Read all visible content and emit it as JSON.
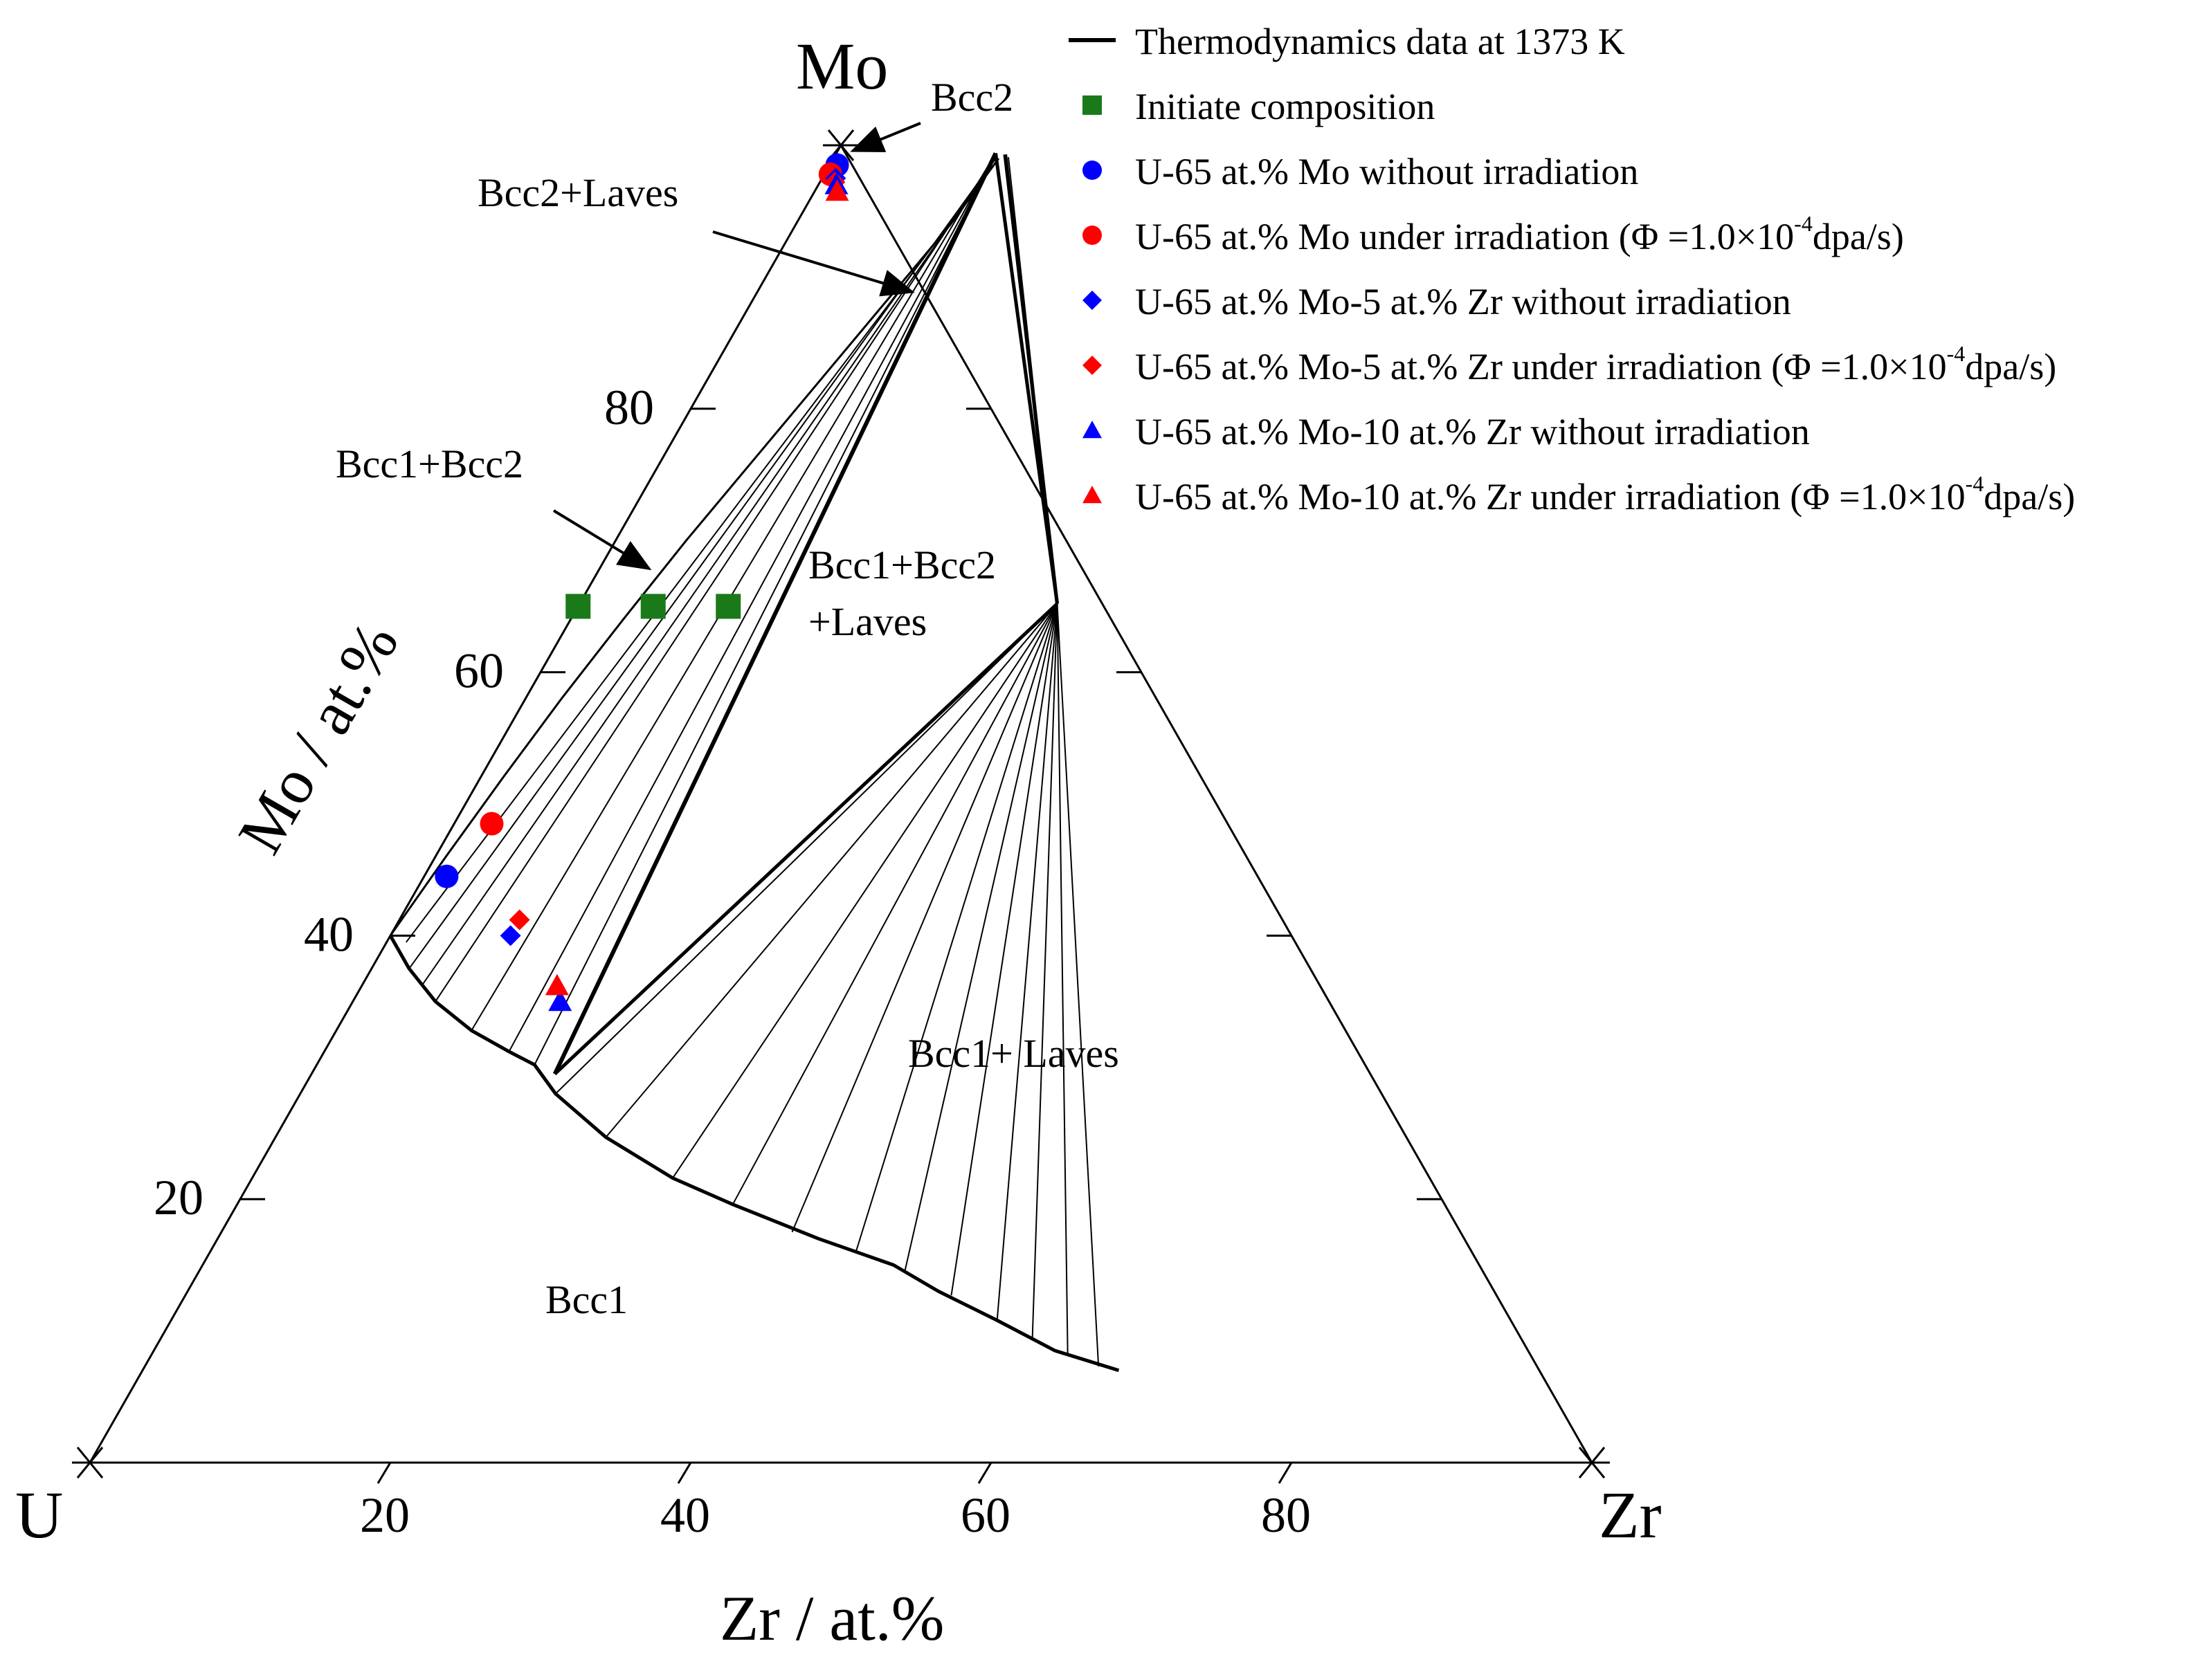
{
  "chart_data": {
    "type": "ternary",
    "title": "",
    "vertices": {
      "top": "Mo",
      "left": "U",
      "right": "Zr"
    },
    "axis_titles": {
      "left": "Mo / at.%",
      "bottom": "Zr / at.%"
    },
    "ticks": [
      20,
      40,
      60,
      80
    ],
    "tick_labels": {
      "mo": [
        "20",
        "40",
        "60",
        "80"
      ],
      "zr": [
        "20",
        "40",
        "60",
        "80"
      ]
    },
    "region_labels": [
      {
        "id": "bcc2",
        "text": "Bcc2",
        "x_zr": 2.0,
        "y_mo": 98.0
      },
      {
        "id": "bcc2-laves",
        "text": "Bcc2+Laves",
        "x_zr": 5.0,
        "y_mo": 86.0
      },
      {
        "id": "bcc1-bcc2",
        "text": "Bcc1+Bcc2",
        "x_zr": 6.0,
        "y_mo": 67.0
      },
      {
        "id": "bcc1-bcc2-laves-1",
        "text": "Bcc1+Bcc2",
        "x_zr": 31.0,
        "y_mo": 58.0
      },
      {
        "id": "bcc1-bcc2-laves-2",
        "text": "+Laves",
        "x_zr": 31.0,
        "y_mo": 53.0
      },
      {
        "id": "bcc1-laves",
        "text": "Bcc1+ Laves",
        "x_zr": 50.0,
        "y_mo": 26.0
      },
      {
        "id": "bcc1",
        "text": "Bcc1",
        "x_zr": 32.0,
        "y_mo": 8.0
      }
    ],
    "phase_boundaries": {
      "bcc1_boundary": [
        [
          0,
          40
        ],
        [
          2.5,
          37.5
        ],
        [
          5.5,
          35
        ],
        [
          9.0,
          32.8
        ],
        [
          12.3,
          31.2
        ],
        [
          14.5,
          30.2
        ],
        [
          17,
          28
        ],
        [
          22,
          24.7
        ],
        [
          28,
          21.6
        ],
        [
          33,
          19.6
        ],
        [
          40,
          17
        ],
        [
          46,
          15
        ],
        [
          50,
          13
        ],
        [
          55,
          10.8
        ],
        [
          60,
          8.5
        ],
        [
          65,
          7
        ]
      ],
      "bcc2_boundary": [
        [
          0,
          40
        ],
        [
          0.7,
          46
        ],
        [
          1.5,
          52
        ],
        [
          2.4,
          58
        ],
        [
          3.5,
          64
        ],
        [
          4.7,
          70
        ],
        [
          6.1,
          76
        ],
        [
          7.5,
          82
        ],
        [
          8.9,
          88
        ],
        [
          10.3,
          94
        ],
        [
          11.0,
          99.0
        ]
      ],
      "three_phase_triangle": {
        "bcc1": [
          16.2,
          29.5
        ],
        "bcc2": [
          10.6,
          99.4
        ],
        "laves": [
          31.8,
          65.2
        ]
      },
      "laves_boundary": [
        [
          11.3,
          99.3
        ],
        [
          31.8,
          65.2
        ]
      ]
    },
    "tie_lines": {
      "bcc1_bcc2": [
        [
          [
            1.3,
            39.5
          ],
          [
            11.0,
            98.8
          ]
        ],
        [
          [
            2.5,
            37.5
          ],
          [
            10.8,
            99.0
          ]
        ],
        [
          [
            4.0,
            36.3
          ],
          [
            10.8,
            99.0
          ]
        ],
        [
          [
            5.5,
            35
          ],
          [
            10.7,
            99.1
          ]
        ],
        [
          [
            9.0,
            32.8
          ],
          [
            10.6,
            99.2
          ]
        ],
        [
          [
            12.3,
            31.2
          ],
          [
            10.6,
            99.3
          ]
        ],
        [
          [
            14.5,
            30.2
          ],
          [
            10.6,
            99.3
          ]
        ]
      ],
      "bcc1_laves": [
        [
          [
            17,
            28
          ],
          [
            31.8,
            65.2
          ]
        ],
        [
          [
            22,
            24.7
          ],
          [
            31.8,
            65.2
          ]
        ],
        [
          [
            28,
            21.6
          ],
          [
            31.8,
            65.2
          ]
        ],
        [
          [
            33,
            19.6
          ],
          [
            31.8,
            65.2
          ]
        ],
        [
          [
            38,
            17.5
          ],
          [
            31.8,
            65.2
          ]
        ],
        [
          [
            43,
            16
          ],
          [
            31.8,
            65.2
          ]
        ],
        [
          [
            47,
            14.5
          ],
          [
            31.8,
            65.2
          ]
        ],
        [
          [
            51,
            12.7
          ],
          [
            31.8,
            65.2
          ]
        ],
        [
          [
            55,
            10.8
          ],
          [
            31.8,
            65.2
          ]
        ],
        [
          [
            58,
            9.5
          ],
          [
            31.8,
            65.2
          ]
        ],
        [
          [
            61,
            8.2
          ],
          [
            31.8,
            65.2
          ]
        ],
        [
          [
            63.5,
            7.3
          ],
          [
            31.8,
            65.2
          ]
        ]
      ],
      "bcc2_laves": [
        [
          [
            11.2,
            99.3
          ],
          [
            31.8,
            65.2
          ]
        ],
        [
          [
            11.4,
            99.2
          ],
          [
            31.8,
            65.2
          ]
        ],
        [
          [
            11.6,
            99.1
          ],
          [
            31.8,
            65.2
          ]
        ]
      ]
    },
    "series": [
      {
        "name": "Initiate composition",
        "marker": "square",
        "color": "#1a7a1a",
        "points": [
          {
            "zr": 0,
            "mo": 65
          },
          {
            "zr": 5,
            "mo": 65
          },
          {
            "zr": 10,
            "mo": 65
          }
        ]
      },
      {
        "name": "U-65 at.% Mo without irradiation",
        "marker": "circle",
        "color": "#0000ff",
        "points": [
          {
            "zr": 1.5,
            "mo": 44.5
          },
          {
            "zr": 0.5,
            "mo": 98.5
          }
        ]
      },
      {
        "name": "U-65 at.% Mo under irradiation (Φ =1.0×10⁻⁴dpa/s)",
        "marker": "circle",
        "color": "#ff0000",
        "points": [
          {
            "zr": 2.5,
            "mo": 48.5
          },
          {
            "zr": 0.4,
            "mo": 97.8
          }
        ]
      },
      {
        "name": "U-65 at.% Mo-5 at.% Zr without irradiation",
        "marker": "diamond",
        "color": "#0000ff",
        "points": [
          {
            "zr": 8.0,
            "mo": 40.0
          },
          {
            "zr": 0.9,
            "mo": 97.5
          }
        ]
      },
      {
        "name": "U-65 at.% Mo-5 at.% Zr under irradiation (Φ =1.0×10⁻⁴dpa/s)",
        "marker": "diamond",
        "color": "#ff0000",
        "points": [
          {
            "zr": 8.0,
            "mo": 41.2
          },
          {
            "zr": 1.0,
            "mo": 97.2
          }
        ]
      },
      {
        "name": "U-65 at.% Mo-10 at.% Zr without irradiation",
        "marker": "triangle",
        "color": "#0000ff",
        "points": [
          {
            "zr": 13.8,
            "mo": 35.0
          },
          {
            "zr": 1.2,
            "mo": 97.0
          }
        ]
      },
      {
        "name": "U-65 at.% Mo-10 at.% Zr under irradiation (Φ =1.0×10⁻⁴dpa/s)",
        "marker": "triangle",
        "color": "#ff0000",
        "points": [
          {
            "zr": 13.0,
            "mo": 36.2
          },
          {
            "zr": 1.5,
            "mo": 96.5
          }
        ]
      }
    ],
    "legend": {
      "placement": "top-right",
      "items": [
        {
          "marker": "line",
          "color": "#000000",
          "label": "Thermodynamics data at 1373 K"
        },
        {
          "marker": "square",
          "color": "#1a7a1a",
          "label": "Initiate composition"
        },
        {
          "marker": "circle",
          "color": "#0000ff",
          "label": "U-65 at.% Mo without irradiation"
        },
        {
          "marker": "circle",
          "color": "#ff0000",
          "label": "U-65 at.% Mo under irradiation (Φ =1.0×10",
          "sup": "-4",
          "tail": "dpa/s)"
        },
        {
          "marker": "diamond",
          "color": "#0000ff",
          "label": "U-65 at.% Mo-5 at.% Zr without irradiation"
        },
        {
          "marker": "diamond",
          "color": "#ff0000",
          "label": "U-65 at.% Mo-5 at.% Zr under irradiation (Φ =1.0×10",
          "sup": "-4",
          "tail": "dpa/s)"
        },
        {
          "marker": "triangle",
          "color": "#0000ff",
          "label": "U-65 at.% Mo-10 at.% Zr without irradiation"
        },
        {
          "marker": "triangle",
          "color": "#ff0000",
          "label": "U-65 at.% Mo-10 at.% Zr under irradiation (Φ =1.0×10",
          "sup": "-4",
          "tail": "dpa/s)"
        }
      ]
    }
  }
}
